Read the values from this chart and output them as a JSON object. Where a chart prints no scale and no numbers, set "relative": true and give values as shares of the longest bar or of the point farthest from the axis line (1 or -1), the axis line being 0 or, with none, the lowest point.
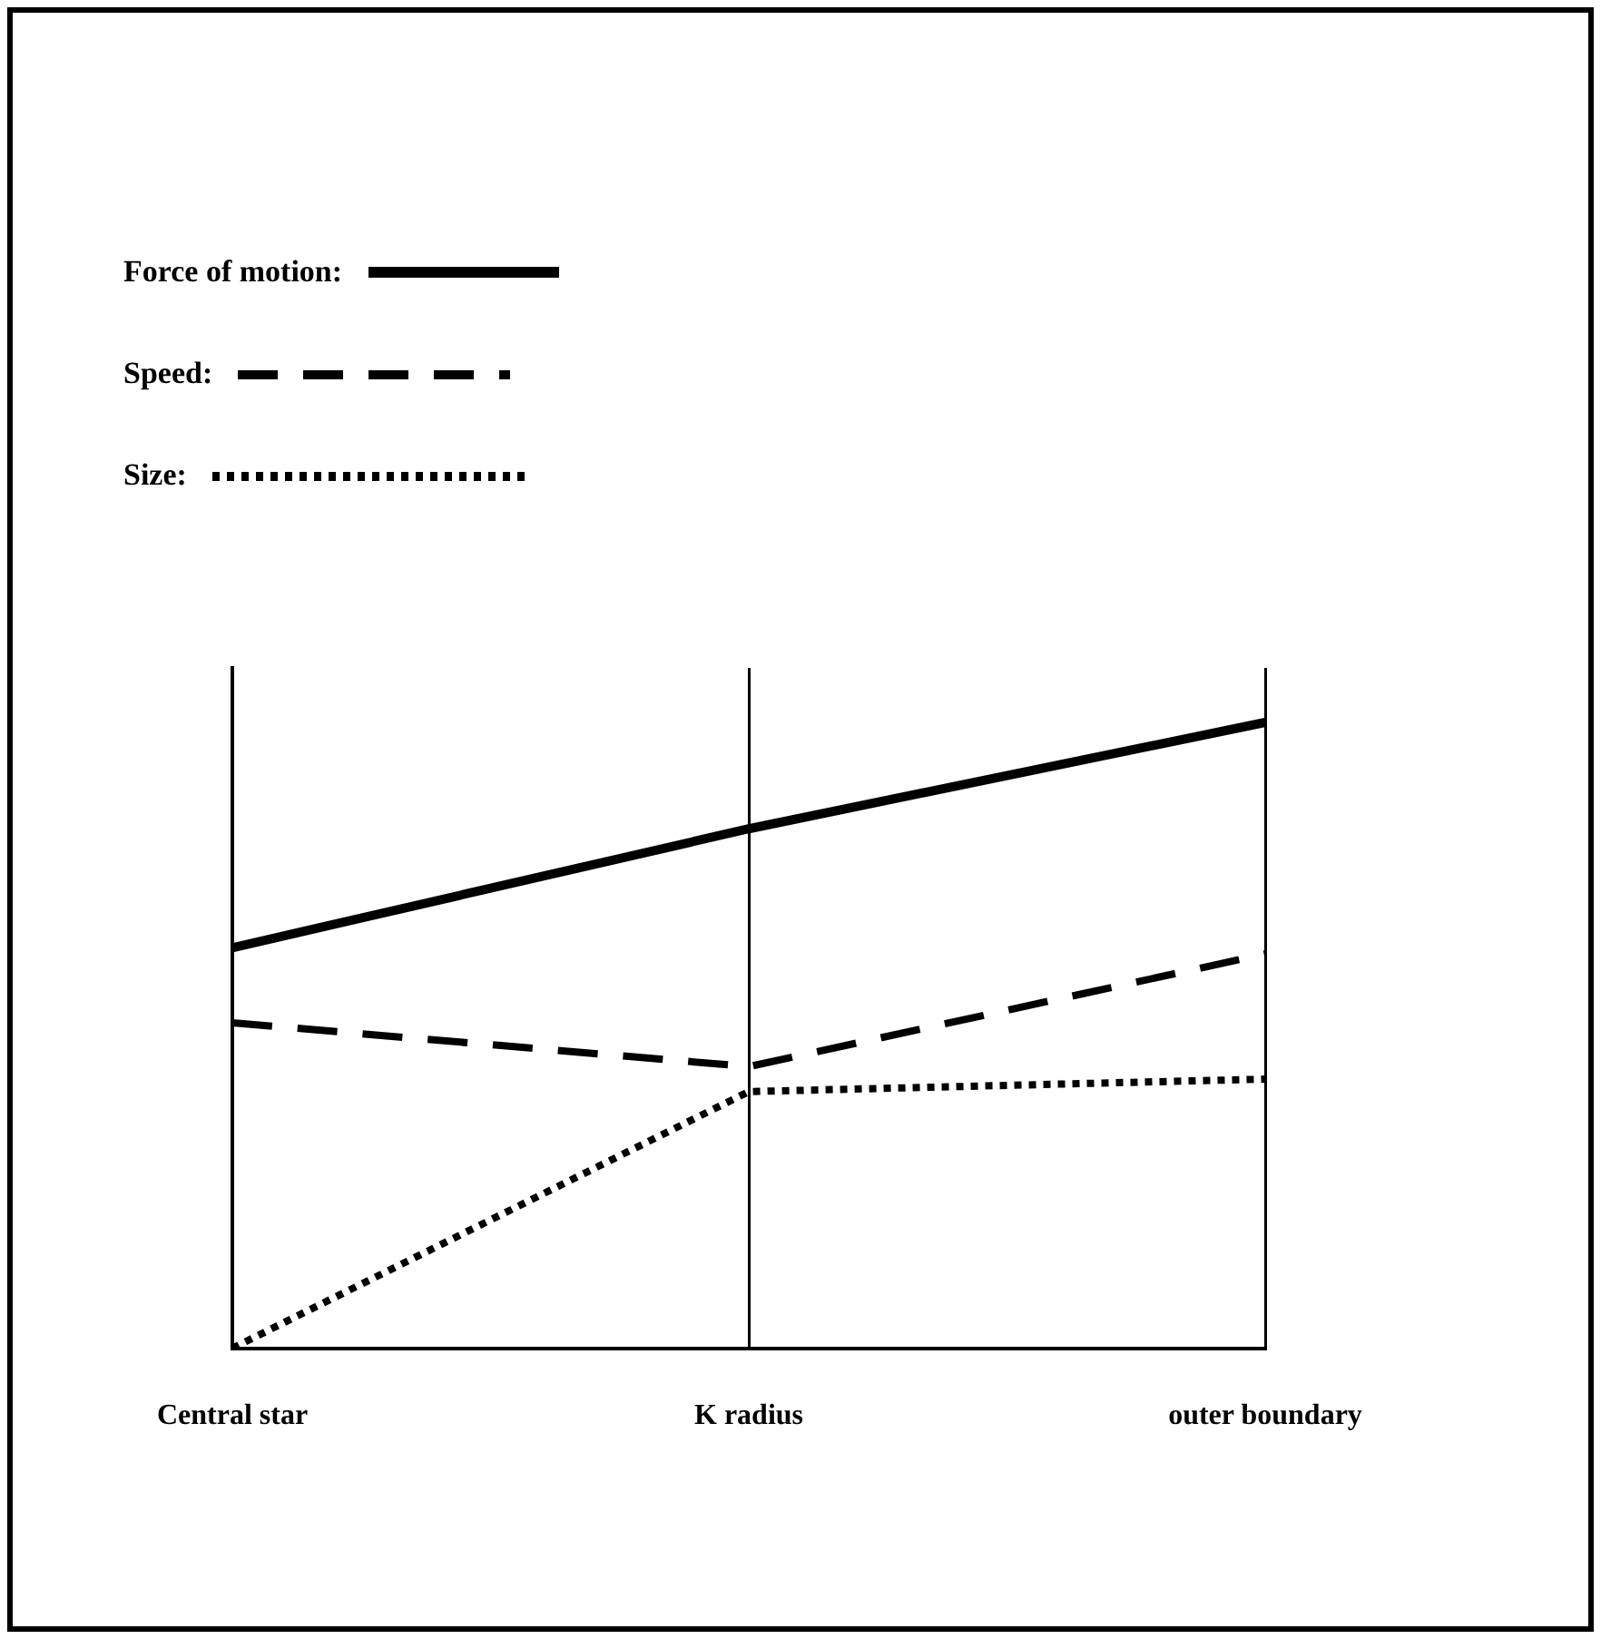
{
  "chart_data": {
    "type": "line",
    "relative": true,
    "categories": [
      "Central star",
      "K radius",
      "outer boundary"
    ],
    "series": [
      {
        "name": "Force of motion:",
        "color": "#000000",
        "line_style": "solid",
        "values": [
          0.64,
          0.83,
          1
        ]
      },
      {
        "name": "Speed:",
        "color": "#000000",
        "line_style": "dashed",
        "values": [
          0.52,
          0.45,
          0.63
        ]
      },
      {
        "name": "Size:",
        "color": "#000000",
        "line_style": "dotted",
        "values": [
          0,
          0.41,
          0.43
        ]
      }
    ],
    "grid": "x",
    "legend": "top left",
    "marker": "none"
  }
}
